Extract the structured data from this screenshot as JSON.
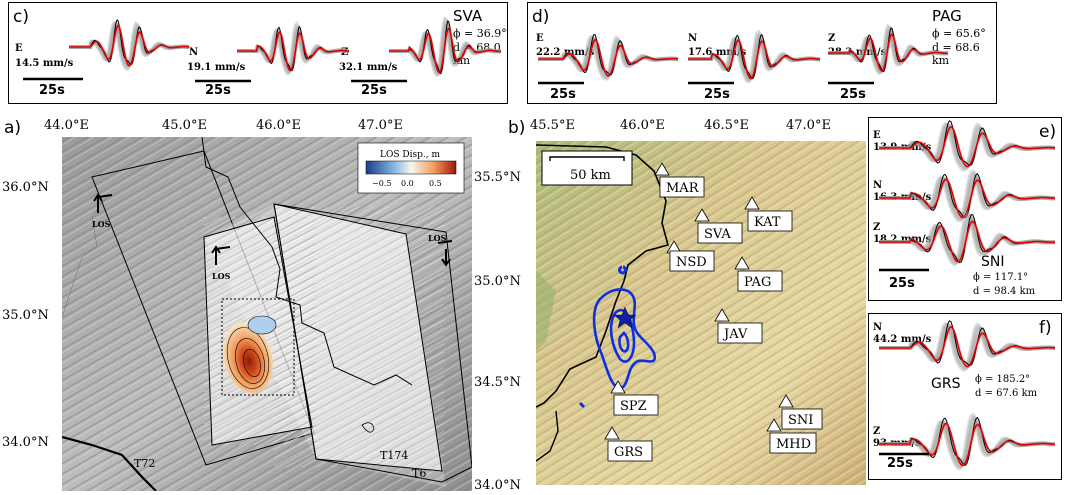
{
  "panel_c": {
    "label": "c)",
    "station": "SVA",
    "phi": "ϕ = 36.9°",
    "dist": "d = 68.0 km",
    "traces": [
      {
        "comp": "E",
        "amp": "14.5 mm/s"
      },
      {
        "comp": "N",
        "amp": "19.1 mm/s"
      },
      {
        "comp": "Z",
        "amp": "32.1 mm/s"
      }
    ],
    "scale": "25s"
  },
  "panel_d": {
    "label": "d)",
    "station": "PAG",
    "phi": "ϕ = 65.6°",
    "dist": "d = 68.6 km",
    "traces": [
      {
        "comp": "E",
        "amp": "22.2 mm/s"
      },
      {
        "comp": "N",
        "amp": "17.6 mm/s"
      },
      {
        "comp": "Z",
        "amp": "28.3 mm/s"
      }
    ],
    "scale": "25s"
  },
  "panel_e": {
    "label": "e)",
    "station": "SNI",
    "phi": "ϕ = 117.1°",
    "dist": "d = 98.4 km",
    "traces": [
      {
        "comp": "E",
        "amp": "13.9 mm/s"
      },
      {
        "comp": "N",
        "amp": "16.3 mm/s"
      },
      {
        "comp": "Z",
        "amp": "18.2 mm/s"
      }
    ],
    "scale": "25s"
  },
  "panel_f": {
    "label": "f)",
    "station": "GRS",
    "phi": "ϕ = 185.2°",
    "dist": "d = 67.6 km",
    "traces": [
      {
        "comp": "N",
        "amp": "44.2 mm/s"
      },
      {
        "comp": "Z",
        "amp": "93 mm/s"
      }
    ],
    "scale": "25s"
  },
  "panel_a": {
    "label": "a)",
    "lon_ticks": [
      "44.0°E",
      "45.0°E",
      "46.0°E",
      "47.0°E"
    ],
    "lat_ticks": [
      "36.0°N",
      "35.0°N",
      "34.0°N"
    ],
    "legend_title": "LOS Disp., m",
    "legend_ticks": [
      "−0.5",
      "0.0",
      "0.5"
    ],
    "tracks": [
      "T72",
      "T174",
      "T6"
    ],
    "los_label": "LOS"
  },
  "panel_b": {
    "label": "b)",
    "lon_ticks": [
      "45.5°E",
      "46.0°E",
      "46.5°E",
      "47.0°E"
    ],
    "lat_ticks": [
      "35.5°N",
      "35.0°N",
      "34.5°N",
      "34.0°N"
    ],
    "scale_label": "50 km",
    "stations": [
      "MAR",
      "SVA",
      "KAT",
      "NSD",
      "PAG",
      "JAV",
      "SPZ",
      "SNI",
      "GRS",
      "MHD"
    ]
  },
  "colors": {
    "synthetic": "#e00000",
    "observed": "#000000",
    "envelope": "#9a9a9a",
    "contour": "#1030e0"
  }
}
